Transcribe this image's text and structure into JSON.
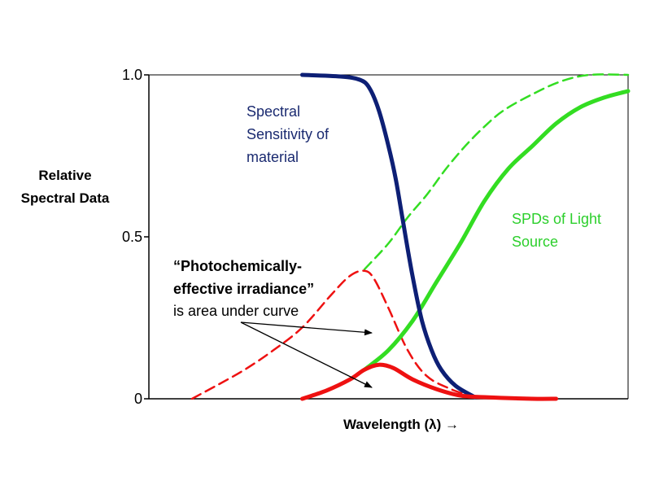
{
  "chart_data": {
    "type": "line",
    "xlabel": "Wavelength (λ) →",
    "ylabel_lines": [
      "Relative",
      "Spectral Data"
    ],
    "ylim": [
      0,
      1.0
    ],
    "y_ticks": [
      {
        "value": 0,
        "label": "0"
      },
      {
        "value": 0.5,
        "label": "0.5"
      },
      {
        "value": 1.0,
        "label": "1.0"
      }
    ],
    "xlim": [
      0,
      100
    ],
    "grid": false,
    "series": [
      {
        "key": "sensitivity",
        "color": "#0d1f75",
        "style": "solid",
        "x": [
          32,
          40,
          44,
          46,
          48,
          50,
          51.5,
          53,
          55,
          57,
          59,
          61,
          64,
          68
        ],
        "y": [
          1.0,
          0.995,
          0.985,
          0.96,
          0.89,
          0.78,
          0.68,
          0.55,
          0.38,
          0.24,
          0.15,
          0.09,
          0.04,
          0.005
        ]
      },
      {
        "key": "spd-dashed",
        "color": "#33dd22",
        "style": "dashed",
        "x": [
          45,
          50,
          54,
          58,
          62,
          66,
          70,
          74,
          80,
          86,
          92,
          100
        ],
        "y": [
          0.4,
          0.48,
          0.56,
          0.63,
          0.71,
          0.78,
          0.84,
          0.89,
          0.94,
          0.98,
          1.0,
          1.0
        ]
      },
      {
        "key": "spd-solid",
        "color": "#33dd22",
        "style": "solid",
        "x": [
          45,
          50,
          55,
          60,
          65,
          70,
          75,
          80,
          85,
          90,
          95,
          100
        ],
        "y": [
          0.09,
          0.15,
          0.24,
          0.36,
          0.48,
          0.61,
          0.71,
          0.78,
          0.85,
          0.9,
          0.93,
          0.95
        ]
      },
      {
        "key": "irradiance-dashed",
        "color": "#ee1111",
        "style": "dashed",
        "x": [
          9,
          14,
          20,
          26,
          32,
          38,
          42,
          45,
          47,
          50,
          54,
          58,
          63,
          68
        ],
        "y": [
          0.0,
          0.04,
          0.09,
          0.15,
          0.22,
          0.32,
          0.38,
          0.395,
          0.37,
          0.28,
          0.15,
          0.07,
          0.03,
          0.005
        ]
      },
      {
        "key": "irradiance-solid",
        "color": "#ee1111",
        "style": "solid",
        "x": [
          32,
          37,
          42,
          45,
          48,
          51,
          55,
          60,
          65,
          70,
          80,
          85
        ],
        "y": [
          0.0,
          0.025,
          0.06,
          0.09,
          0.105,
          0.095,
          0.06,
          0.03,
          0.01,
          0.005,
          0.0,
          0.0
        ]
      }
    ],
    "annotations": {
      "sensitivity": [
        "Spectral",
        "Sensitivity of",
        "material"
      ],
      "spd": [
        "SPDs of Light",
        "Source"
      ],
      "photo_bold": [
        "“Photochemically-",
        "effective irradiance”"
      ],
      "photo_plain": "is area under curve"
    },
    "colors": {
      "sensitivity_text": "#1a2a70",
      "spd_text": "#2ccf2c",
      "axis": "#000000"
    }
  }
}
